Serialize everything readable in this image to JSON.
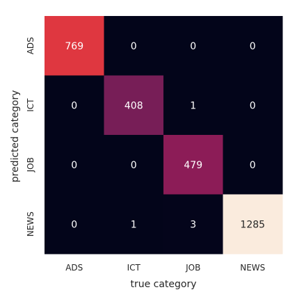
{
  "chart_data": {
    "type": "heatmap",
    "title": "",
    "xlabel": "true category",
    "ylabel": "predicted category",
    "x_categories": [
      "ADS",
      "ICT",
      "JOB",
      "NEWS"
    ],
    "y_categories": [
      "ADS",
      "ICT",
      "JOB",
      "NEWS"
    ],
    "values": [
      [
        769,
        0,
        0,
        0
      ],
      [
        0,
        408,
        1,
        0
      ],
      [
        0,
        0,
        479,
        0
      ],
      [
        0,
        1,
        3,
        1285
      ]
    ],
    "vmin": 0,
    "vmax": 1285,
    "colormap": "rocket",
    "colorbar": false,
    "grid": false
  }
}
